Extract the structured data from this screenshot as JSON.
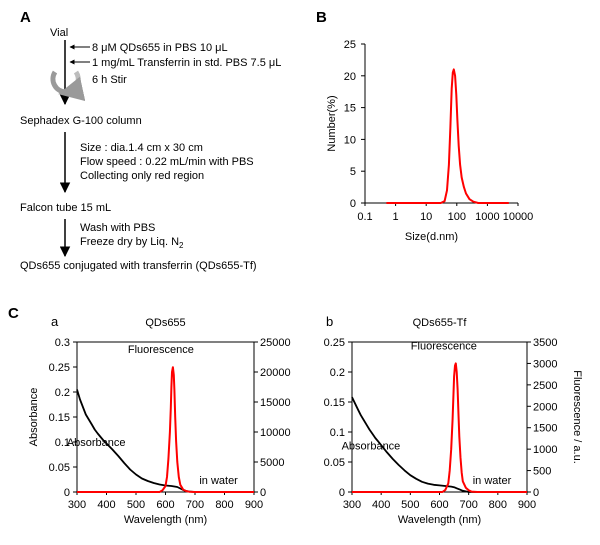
{
  "panelA": {
    "label": "A",
    "vial": "Vial",
    "reagent1": "8 μM QDs655 in PBS 10 μL",
    "reagent2": "1 mg/mL Transferrin in std. PBS 7.5 μL",
    "stir": "6 h Stir",
    "column": "Sephadex G-100 column",
    "size": "Size : dia.1.4 cm x 30 cm",
    "flow": "Flow speed : 0.22 mL/min with PBS",
    "collect": "Collecting only red region",
    "falcon": "Falcon tube 15 mL",
    "wash": "Wash with PBS",
    "freeze": "Freeze dry by Liq. N",
    "freeze_sub": "2",
    "product": "QDs655 conjugated with transferrin (QDs655-Tf)"
  },
  "panelB": {
    "label": "B"
  },
  "panelC": {
    "label": "C"
  },
  "chart_data": [
    {
      "type": "line",
      "panel": "B",
      "xlabel": "Size(d.nm)",
      "ylabel": "Number(%)",
      "xscale": "log",
      "xlim": [
        0.1,
        10000
      ],
      "ylim": [
        0,
        25
      ],
      "xticks": [
        "0.1",
        "1",
        "10",
        "100",
        "1000",
        "10000"
      ],
      "yticks": [
        "0",
        "5",
        "10",
        "15",
        "20",
        "25"
      ],
      "color": "#ff0000",
      "series": [
        {
          "x": [
            0.5,
            30,
            40,
            48,
            55,
            62,
            68,
            74,
            80,
            88,
            96,
            105,
            115,
            128,
            145,
            170,
            200,
            260,
            350,
            500,
            800,
            1500,
            3000,
            5000
          ],
          "y": [
            0,
            0,
            0.3,
            2,
            6,
            12,
            18,
            20.5,
            21,
            20,
            17,
            13,
            9,
            6,
            4,
            2.5,
            1.5,
            0.6,
            0.2,
            0,
            0,
            0,
            0,
            0
          ]
        }
      ]
    },
    {
      "type": "line",
      "panel": "C-a",
      "sublabel": "a",
      "title": "QDs655",
      "xlabel": "Wavelength (nm)",
      "ylabel": "Absorbance",
      "ylabel2": "",
      "xlim": [
        300,
        900
      ],
      "ylim": [
        0,
        0.3
      ],
      "y2lim": [
        0,
        25000
      ],
      "xticks": [
        "300",
        "400",
        "500",
        "600",
        "700",
        "800",
        "900"
      ],
      "yticks": [
        "0",
        "0.05",
        "0.1",
        "0.15",
        "0.2",
        "0.25",
        "0.3"
      ],
      "y2ticks": [
        "0",
        "5000",
        "10000",
        "15000",
        "20000",
        "25000"
      ],
      "annotations": {
        "fluorescence": "Fluorescence",
        "absorbance": "Absorbance",
        "medium": "in water"
      },
      "absorbance": {
        "name": "Absorbance",
        "color": "#000000",
        "axis": "left",
        "x": [
          300,
          310,
          320,
          330,
          340,
          350,
          360,
          370,
          380,
          390,
          400,
          420,
          440,
          460,
          480,
          500,
          520,
          540,
          560,
          580,
          600,
          620,
          630,
          640,
          650,
          660,
          670,
          680,
          700,
          750,
          800,
          850,
          900
        ],
        "y": [
          0.205,
          0.185,
          0.17,
          0.155,
          0.145,
          0.135,
          0.125,
          0.117,
          0.11,
          0.103,
          0.097,
          0.085,
          0.072,
          0.058,
          0.045,
          0.035,
          0.027,
          0.022,
          0.018,
          0.015,
          0.013,
          0.012,
          0.011,
          0.01,
          0.007,
          0.004,
          0.002,
          0.001,
          0,
          0,
          0,
          0,
          0
        ]
      },
      "fluorescence": {
        "name": "Fluorescence",
        "color": "#ff0000",
        "axis": "right",
        "x": [
          300,
          580,
          590,
          600,
          605,
          610,
          615,
          618,
          620,
          622,
          625,
          628,
          630,
          633,
          636,
          640,
          645,
          650,
          660,
          670,
          680,
          700,
          900
        ],
        "y": [
          0,
          0,
          300,
          1000,
          2500,
          5500,
          10000,
          14000,
          17500,
          20000,
          20800,
          19500,
          17000,
          12500,
          8500,
          5000,
          2500,
          1200,
          400,
          150,
          50,
          0,
          0
        ]
      }
    },
    {
      "type": "line",
      "panel": "C-b",
      "sublabel": "b",
      "title": "QDs655-Tf",
      "xlabel": "Wavelength (nm)",
      "ylabel": "",
      "ylabel2": "Fluorescence / a.u.",
      "xlim": [
        300,
        900
      ],
      "ylim": [
        0,
        0.25
      ],
      "y2lim": [
        0,
        3500
      ],
      "xticks": [
        "300",
        "400",
        "500",
        "600",
        "700",
        "800",
        "900"
      ],
      "yticks": [
        "0",
        "0.05",
        "0.1",
        "0.15",
        "0.2",
        "0.25"
      ],
      "y2ticks": [
        "0",
        "500",
        "1000",
        "1500",
        "2000",
        "2500",
        "3000",
        "3500"
      ],
      "annotations": {
        "fluorescence": "Fluorescence",
        "absorbance": "Absorbance",
        "medium": "in water"
      },
      "absorbance": {
        "name": "Absorbance",
        "color": "#000000",
        "axis": "left",
        "x": [
          300,
          310,
          320,
          330,
          340,
          350,
          360,
          370,
          380,
          390,
          400,
          420,
          440,
          460,
          480,
          500,
          520,
          540,
          560,
          580,
          600,
          620,
          640,
          650,
          660,
          670,
          680,
          690,
          700,
          750,
          800,
          850,
          900
        ],
        "y": [
          0.158,
          0.148,
          0.138,
          0.128,
          0.12,
          0.112,
          0.104,
          0.097,
          0.09,
          0.084,
          0.078,
          0.066,
          0.055,
          0.045,
          0.036,
          0.028,
          0.022,
          0.017,
          0.014,
          0.012,
          0.011,
          0.01,
          0.009,
          0.008,
          0.006,
          0.004,
          0.002,
          0.001,
          0,
          0,
          0,
          0,
          0
        ]
      },
      "fluorescence": {
        "name": "Fluorescence",
        "color": "#ff0000",
        "axis": "right",
        "x": [
          300,
          610,
          620,
          630,
          635,
          640,
          645,
          648,
          650,
          653,
          656,
          659,
          662,
          665,
          668,
          672,
          676,
          680,
          690,
          700,
          710,
          730,
          900
        ],
        "y": [
          0,
          0,
          50,
          200,
          500,
          1000,
          1700,
          2300,
          2700,
          2950,
          3000,
          2800,
          2400,
          1800,
          1300,
          800,
          450,
          250,
          100,
          40,
          10,
          0,
          0
        ]
      }
    }
  ]
}
